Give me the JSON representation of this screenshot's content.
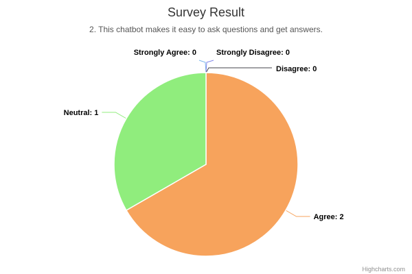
{
  "chart_data": {
    "type": "pie",
    "title": "Survey Result",
    "subtitle": "2. This chatbot makes it easy to ask questions and get answers.",
    "categories": [
      "Strongly Agree",
      "Agree",
      "Neutral",
      "Disagree",
      "Strongly Disagree"
    ],
    "values": [
      0,
      2,
      1,
      0,
      0
    ],
    "colors": [
      "#7cb5ec",
      "#f7a35c",
      "#90ed7d",
      "#434348",
      "#8085e9"
    ],
    "labels": [
      "Strongly Agree: 0",
      "Agree: 2",
      "Neutral: 1",
      "Disagree: 0",
      "Strongly Disagree: 0"
    ],
    "legend": "none"
  },
  "credits": "Highcharts.com"
}
